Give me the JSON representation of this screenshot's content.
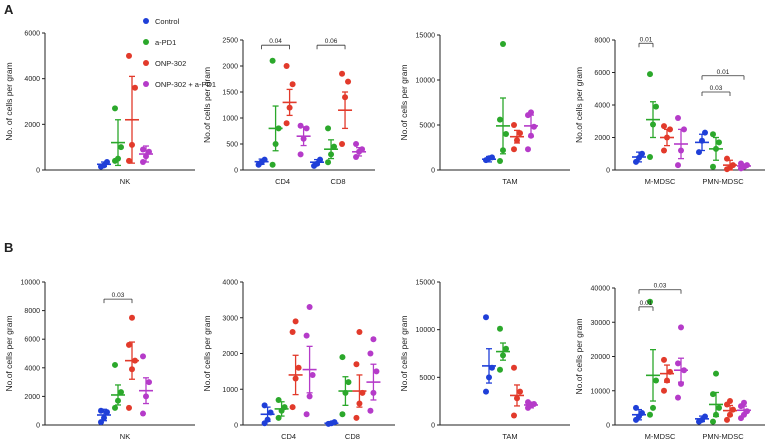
{
  "panel_labels": [
    "A",
    "B"
  ],
  "legend": [
    {
      "name": "Control",
      "color": "#1f3fd8"
    },
    {
      "name": "a-PD1",
      "color": "#2ba82b"
    },
    {
      "name": "ONP-302",
      "color": "#e23a2b"
    },
    {
      "name": "ONP-302 + a-PD1",
      "color": "#b53bc9"
    }
  ],
  "chart_data": [
    {
      "id": "A1",
      "type": "scatter",
      "ylabel": "No. of cells per gram",
      "ylim": [
        0,
        6000
      ],
      "ticks": [
        0,
        2000,
        4000,
        6000
      ],
      "groups": [
        {
          "label": "NK",
          "series": [
            {
              "points": [
                150,
                200,
                350
              ],
              "mean": 250,
              "err": 100
            },
            {
              "points": [
                400,
                500,
                1000,
                2700
              ],
              "mean": 1200,
              "err": 1000
            },
            {
              "points": [
                400,
                1100,
                3600,
                5000
              ],
              "mean": 2200,
              "err": 1900
            },
            {
              "points": [
                350,
                600,
                800,
                900
              ],
              "mean": 700,
              "err": 350
            }
          ]
        }
      ],
      "brackets": []
    },
    {
      "id": "A2",
      "type": "scatter",
      "ylabel": "No.of cells per gram",
      "ylim": [
        0,
        2500
      ],
      "ticks": [
        0,
        500,
        1000,
        1500,
        2000,
        2500
      ],
      "groups": [
        {
          "label": "CD4",
          "series": [
            {
              "points": [
                100,
                150,
                200
              ],
              "mean": 160,
              "err": 50
            },
            {
              "points": [
                100,
                500,
                800,
                2100
              ],
              "mean": 800,
              "err": 430
            },
            {
              "points": [
                900,
                1200,
                1650,
                2000
              ],
              "mean": 1300,
              "err": 250
            },
            {
              "points": [
                300,
                600,
                800,
                850
              ],
              "mean": 650,
              "err": 180
            }
          ]
        },
        {
          "label": "CD8",
          "series": [
            {
              "points": [
                80,
                120,
                200
              ],
              "mean": 150,
              "err": 50
            },
            {
              "points": [
                150,
                300,
                450,
                800
              ],
              "mean": 400,
              "err": 180
            },
            {
              "points": [
                500,
                1400,
                1700,
                1850
              ],
              "mean": 1150,
              "err": 350
            },
            {
              "points": [
                250,
                350,
                400,
                500
              ],
              "mean": 350,
              "err": 80
            }
          ]
        }
      ],
      "brackets": [
        {
          "label": "0.04",
          "g": 0,
          "from": 0,
          "to": 2,
          "y": 2400
        },
        {
          "label": "0.06",
          "g": 1,
          "from": 0,
          "to": 2,
          "y": 2400
        }
      ]
    },
    {
      "id": "A3",
      "type": "scatter",
      "ylabel": "No.of cells per gram",
      "ylim": [
        0,
        15000
      ],
      "ticks": [
        0,
        5000,
        10000,
        15000
      ],
      "groups": [
        {
          "label": "TAM",
          "series": [
            {
              "points": [
                1100,
                1300,
                1400
              ],
              "mean": 1200,
              "err": 300
            },
            {
              "points": [
                1000,
                2200,
                4000,
                5600,
                14000
              ],
              "mean": 4900,
              "err": 3100
            },
            {
              "points": [
                2300,
                3300,
                4100,
                5000
              ],
              "mean": 3700,
              "err": 700
            },
            {
              "points": [
                2300,
                3800,
                4800,
                6100,
                6400
              ],
              "mean": 4900,
              "err": 1200
            }
          ]
        }
      ],
      "brackets": []
    },
    {
      "id": "A4",
      "type": "scatter",
      "ylabel": "No.of cells per gram",
      "ylim": [
        0,
        8000
      ],
      "ticks": [
        0,
        2000,
        4000,
        6000,
        8000
      ],
      "groups": [
        {
          "label": "M-MDSC",
          "series": [
            {
              "points": [
                500,
                750,
                1000
              ],
              "mean": 800,
              "err": 300
            },
            {
              "points": [
                800,
                2800,
                3900,
                5900
              ],
              "mean": 3100,
              "err": 1100
            },
            {
              "points": [
                1200,
                2000,
                2500,
                2700
              ],
              "mean": 2000,
              "err": 500
            },
            {
              "points": [
                300,
                1200,
                2500,
                3200
              ],
              "mean": 1600,
              "err": 900
            }
          ]
        },
        {
          "label": "PMN-MDSC",
          "series": [
            {
              "points": [
                1100,
                1800,
                2300
              ],
              "mean": 1700,
              "err": 500
            },
            {
              "points": [
                200,
                1300,
                1700,
                2200
              ],
              "mean": 1300,
              "err": 700
            },
            {
              "points": [
                50,
                150,
                300,
                700
              ],
              "mean": 300,
              "err": 300
            },
            {
              "points": [
                100,
                200,
                300,
                400
              ],
              "mean": 250,
              "err": 120
            }
          ]
        }
      ],
      "brackets": [
        {
          "label": "0.01",
          "g": 0,
          "from": 0,
          "to": 1,
          "y": 7800
        },
        {
          "label": "0.03",
          "g": 1,
          "from": 0,
          "to": 2,
          "y": 4800
        },
        {
          "label": "0.01",
          "g": 1,
          "from": 0,
          "to": 3,
          "y": 5800
        }
      ]
    },
    {
      "id": "B1",
      "type": "scatter",
      "ylabel": "No.of cells per gram",
      "ylim": [
        0,
        10000
      ],
      "ticks": [
        0,
        2000,
        4000,
        6000,
        8000,
        10000
      ],
      "groups": [
        {
          "label": "NK",
          "series": [
            {
              "points": [
                200,
                500,
                900,
                1000
              ],
              "mean": 700,
              "err": 400
            },
            {
              "points": [
                1200,
                1700,
                2300,
                4200
              ],
              "mean": 2100,
              "err": 700
            },
            {
              "points": [
                1200,
                3900,
                4500,
                5600,
                7500
              ],
              "mean": 4500,
              "err": 1300
            },
            {
              "points": [
                800,
                2000,
                3000,
                4800
              ],
              "mean": 2400,
              "err": 900
            }
          ]
        }
      ],
      "brackets": [
        {
          "label": "0.03",
          "g": 0,
          "from": 0,
          "to": 2,
          "y": 8800
        }
      ]
    },
    {
      "id": "B2",
      "type": "scatter",
      "ylabel": "No.of cells per gram",
      "ylim": [
        0,
        4000
      ],
      "ticks": [
        0,
        1000,
        2000,
        3000,
        4000
      ],
      "groups": [
        {
          "label": "CD4",
          "series": [
            {
              "points": [
                50,
                150,
                350,
                550
              ],
              "mean": 300,
              "err": 200
            },
            {
              "points": [
                200,
                400,
                500,
                700
              ],
              "mean": 450,
              "err": 200
            },
            {
              "points": [
                500,
                1300,
                1600,
                2600,
                2900
              ],
              "mean": 1400,
              "err": 550
            },
            {
              "points": [
                300,
                800,
                1400,
                2500,
                3300
              ],
              "mean": 1550,
              "err": 650
            }
          ]
        },
        {
          "label": "CD8",
          "series": [
            {
              "points": [
                30,
                50,
                80
              ],
              "mean": 50,
              "err": 30
            },
            {
              "points": [
                300,
                900,
                1200,
                1900
              ],
              "mean": 950,
              "err": 400
            },
            {
              "points": [
                200,
                600,
                900,
                1700,
                2600
              ],
              "mean": 950,
              "err": 450
            },
            {
              "points": [
                400,
                900,
                1500,
                2000,
                2400
              ],
              "mean": 1200,
              "err": 500
            }
          ]
        }
      ],
      "brackets": []
    },
    {
      "id": "B3",
      "type": "scatter",
      "ylabel": "No.of cells per gram",
      "ylim": [
        0,
        15000
      ],
      "ticks": [
        0,
        5000,
        10000,
        15000
      ],
      "groups": [
        {
          "label": "TAM",
          "series": [
            {
              "points": [
                3500,
                5000,
                6000,
                11300
              ],
              "mean": 6200,
              "err": 1800
            },
            {
              "points": [
                5800,
                7300,
                8000,
                10100
              ],
              "mean": 7700,
              "err": 900
            },
            {
              "points": [
                1000,
                2800,
                3500,
                6000
              ],
              "mean": 3100,
              "err": 1100
            },
            {
              "points": [
                1800,
                2100,
                2200,
                2400
              ],
              "mean": 2100,
              "err": 300
            }
          ]
        }
      ],
      "brackets": []
    },
    {
      "id": "B4",
      "type": "scatter",
      "ylabel": "No.of cells per gram",
      "ylim": [
        0,
        40000
      ],
      "ticks": [
        0,
        10000,
        20000,
        30000,
        40000
      ],
      "groups": [
        {
          "label": "M-MDSC",
          "series": [
            {
              "points": [
                1500,
                2500,
                3500,
                5000
              ],
              "mean": 3000,
              "err": 1500
            },
            {
              "points": [
                3000,
                5000,
                13000,
                36000
              ],
              "mean": 14500,
              "err": 7500
            },
            {
              "points": [
                10000,
                13000,
                15500,
                19000
              ],
              "mean": 15000,
              "err": 2500
            },
            {
              "points": [
                8000,
                12000,
                16000,
                18000,
                28500
              ],
              "mean": 16000,
              "err": 3500
            }
          ]
        },
        {
          "label": "PMN-MDSC",
          "series": [
            {
              "points": [
                1000,
                1500,
                2500
              ],
              "mean": 1800,
              "err": 800
            },
            {
              "points": [
                1000,
                3000,
                5000,
                9000,
                15000
              ],
              "mean": 6000,
              "err": 3500
            },
            {
              "points": [
                1500,
                3000,
                4500,
                6000,
                7000
              ],
              "mean": 4200,
              "err": 1500
            },
            {
              "points": [
                2000,
                3000,
                4000,
                5500,
                6500
              ],
              "mean": 4300,
              "err": 1200
            }
          ]
        }
      ],
      "brackets": [
        {
          "label": "0.01",
          "g": 0,
          "from": 0,
          "to": 1,
          "y": 34500
        },
        {
          "label": "0.03",
          "g": 0,
          "from": 0,
          "to": 3,
          "y": 39500
        }
      ]
    }
  ]
}
